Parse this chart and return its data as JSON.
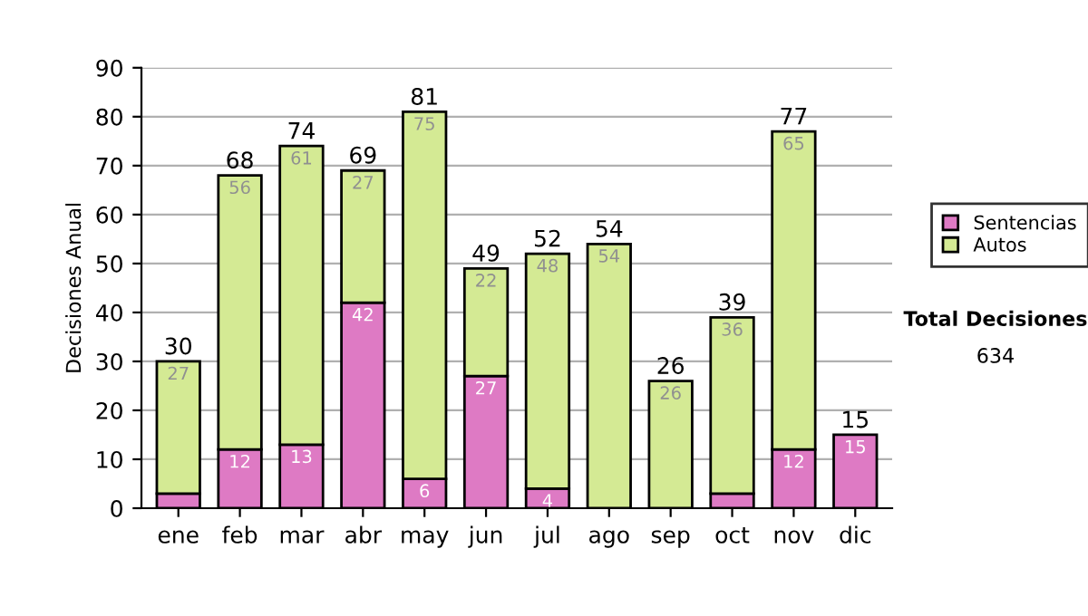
{
  "chart_data": {
    "type": "bar",
    "stacked": true,
    "ylabel": "Decisiones Anual",
    "categories": [
      "ene",
      "feb",
      "mar",
      "abr",
      "may",
      "jun",
      "jul",
      "ago",
      "sep",
      "oct",
      "nov",
      "dic"
    ],
    "series": [
      {
        "name": "Sentencias",
        "color": "#de7ac4",
        "values": [
          3,
          12,
          13,
          42,
          6,
          27,
          4,
          0,
          0,
          3,
          12,
          15
        ],
        "value_labels": [
          null,
          "12",
          "13",
          "42",
          "6",
          "27",
          "4",
          null,
          null,
          null,
          "12",
          "15"
        ]
      },
      {
        "name": "Autos",
        "color": "#d4ea94",
        "values": [
          27,
          56,
          61,
          27,
          75,
          22,
          48,
          54,
          26,
          36,
          65,
          0
        ],
        "value_labels": [
          "27",
          "56",
          "61",
          "27",
          "75",
          "22",
          "48",
          "54",
          "26",
          "36",
          "65",
          null
        ]
      }
    ],
    "totals": [
      "30",
      "68",
      "74",
      "69",
      "81",
      "49",
      "52",
      "54",
      "26",
      "39",
      "77",
      "15"
    ],
    "ylim": [
      0,
      90
    ],
    "yticks": [
      0,
      10,
      20,
      30,
      40,
      50,
      60,
      70,
      80,
      90
    ],
    "grid": "y",
    "legend": "right",
    "annotations": [
      "Total Decisiones",
      "634"
    ]
  }
}
